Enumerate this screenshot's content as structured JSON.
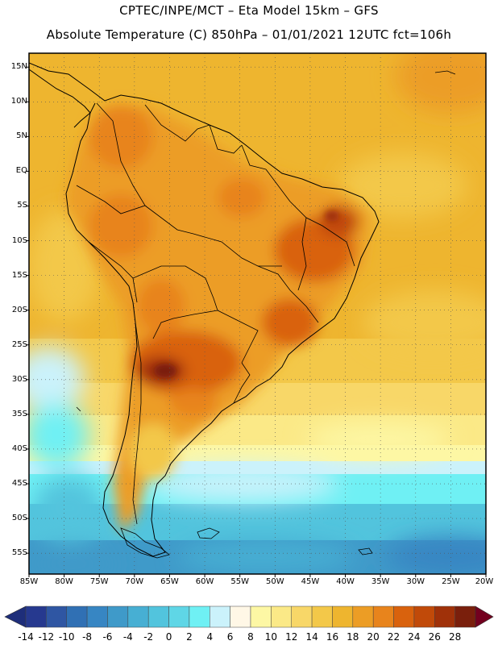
{
  "header": {
    "line1": "CPTEC/INPE/MCT –  Eta Model 15km – GFS",
    "line2": "Absolute Temperature (C) 850hPa – 01/01/2021 12UTC fct=106h"
  },
  "map": {
    "region": "South America",
    "lat_labels": [
      "15N",
      "10N",
      "5N",
      "EQ",
      "5S",
      "10S",
      "15S",
      "20S",
      "25S",
      "30S",
      "35S",
      "40S",
      "45S",
      "50S",
      "55S"
    ],
    "lat_values": [
      15,
      10,
      5,
      0,
      -5,
      -10,
      -15,
      -20,
      -25,
      -30,
      -35,
      -40,
      -45,
      -50,
      -55
    ],
    "lon_labels": [
      "85W",
      "80W",
      "75W",
      "70W",
      "65W",
      "60W",
      "55W",
      "50W",
      "45W",
      "40W",
      "35W",
      "30W",
      "25W",
      "20W"
    ],
    "lon_values": [
      -85,
      -80,
      -75,
      -70,
      -65,
      -60,
      -55,
      -50,
      -45,
      -40,
      -35,
      -30,
      -25,
      -20
    ],
    "grid": "dotted",
    "lat_range": [
      -58,
      17
    ],
    "lon_range": [
      -85,
      -20
    ]
  },
  "colorbar": {
    "labels": [
      "-14",
      "-12",
      "-10",
      "-8",
      "-6",
      "-4",
      "-2",
      "0",
      "2",
      "4",
      "6",
      "8",
      "10",
      "12",
      "14",
      "16",
      "18",
      "20",
      "22",
      "24",
      "26",
      "28"
    ],
    "colors": [
      "#26398f",
      "#2f56a3",
      "#3070b4",
      "#3786c3",
      "#3f9ac9",
      "#47afd3",
      "#52c4dd",
      "#5fd6e6",
      "#6ff0f4",
      "#cbf2fb",
      "#fff7e6",
      "#fdf7a4",
      "#fbe987",
      "#f8d768",
      "#f3c849",
      "#eeb52f",
      "#ec9d25",
      "#e8841c",
      "#d9620d",
      "#c14a09",
      "#a03109",
      "#7a1f0c"
    ],
    "under_color": "#1e2e7a",
    "over_color": "#73001f"
  }
}
